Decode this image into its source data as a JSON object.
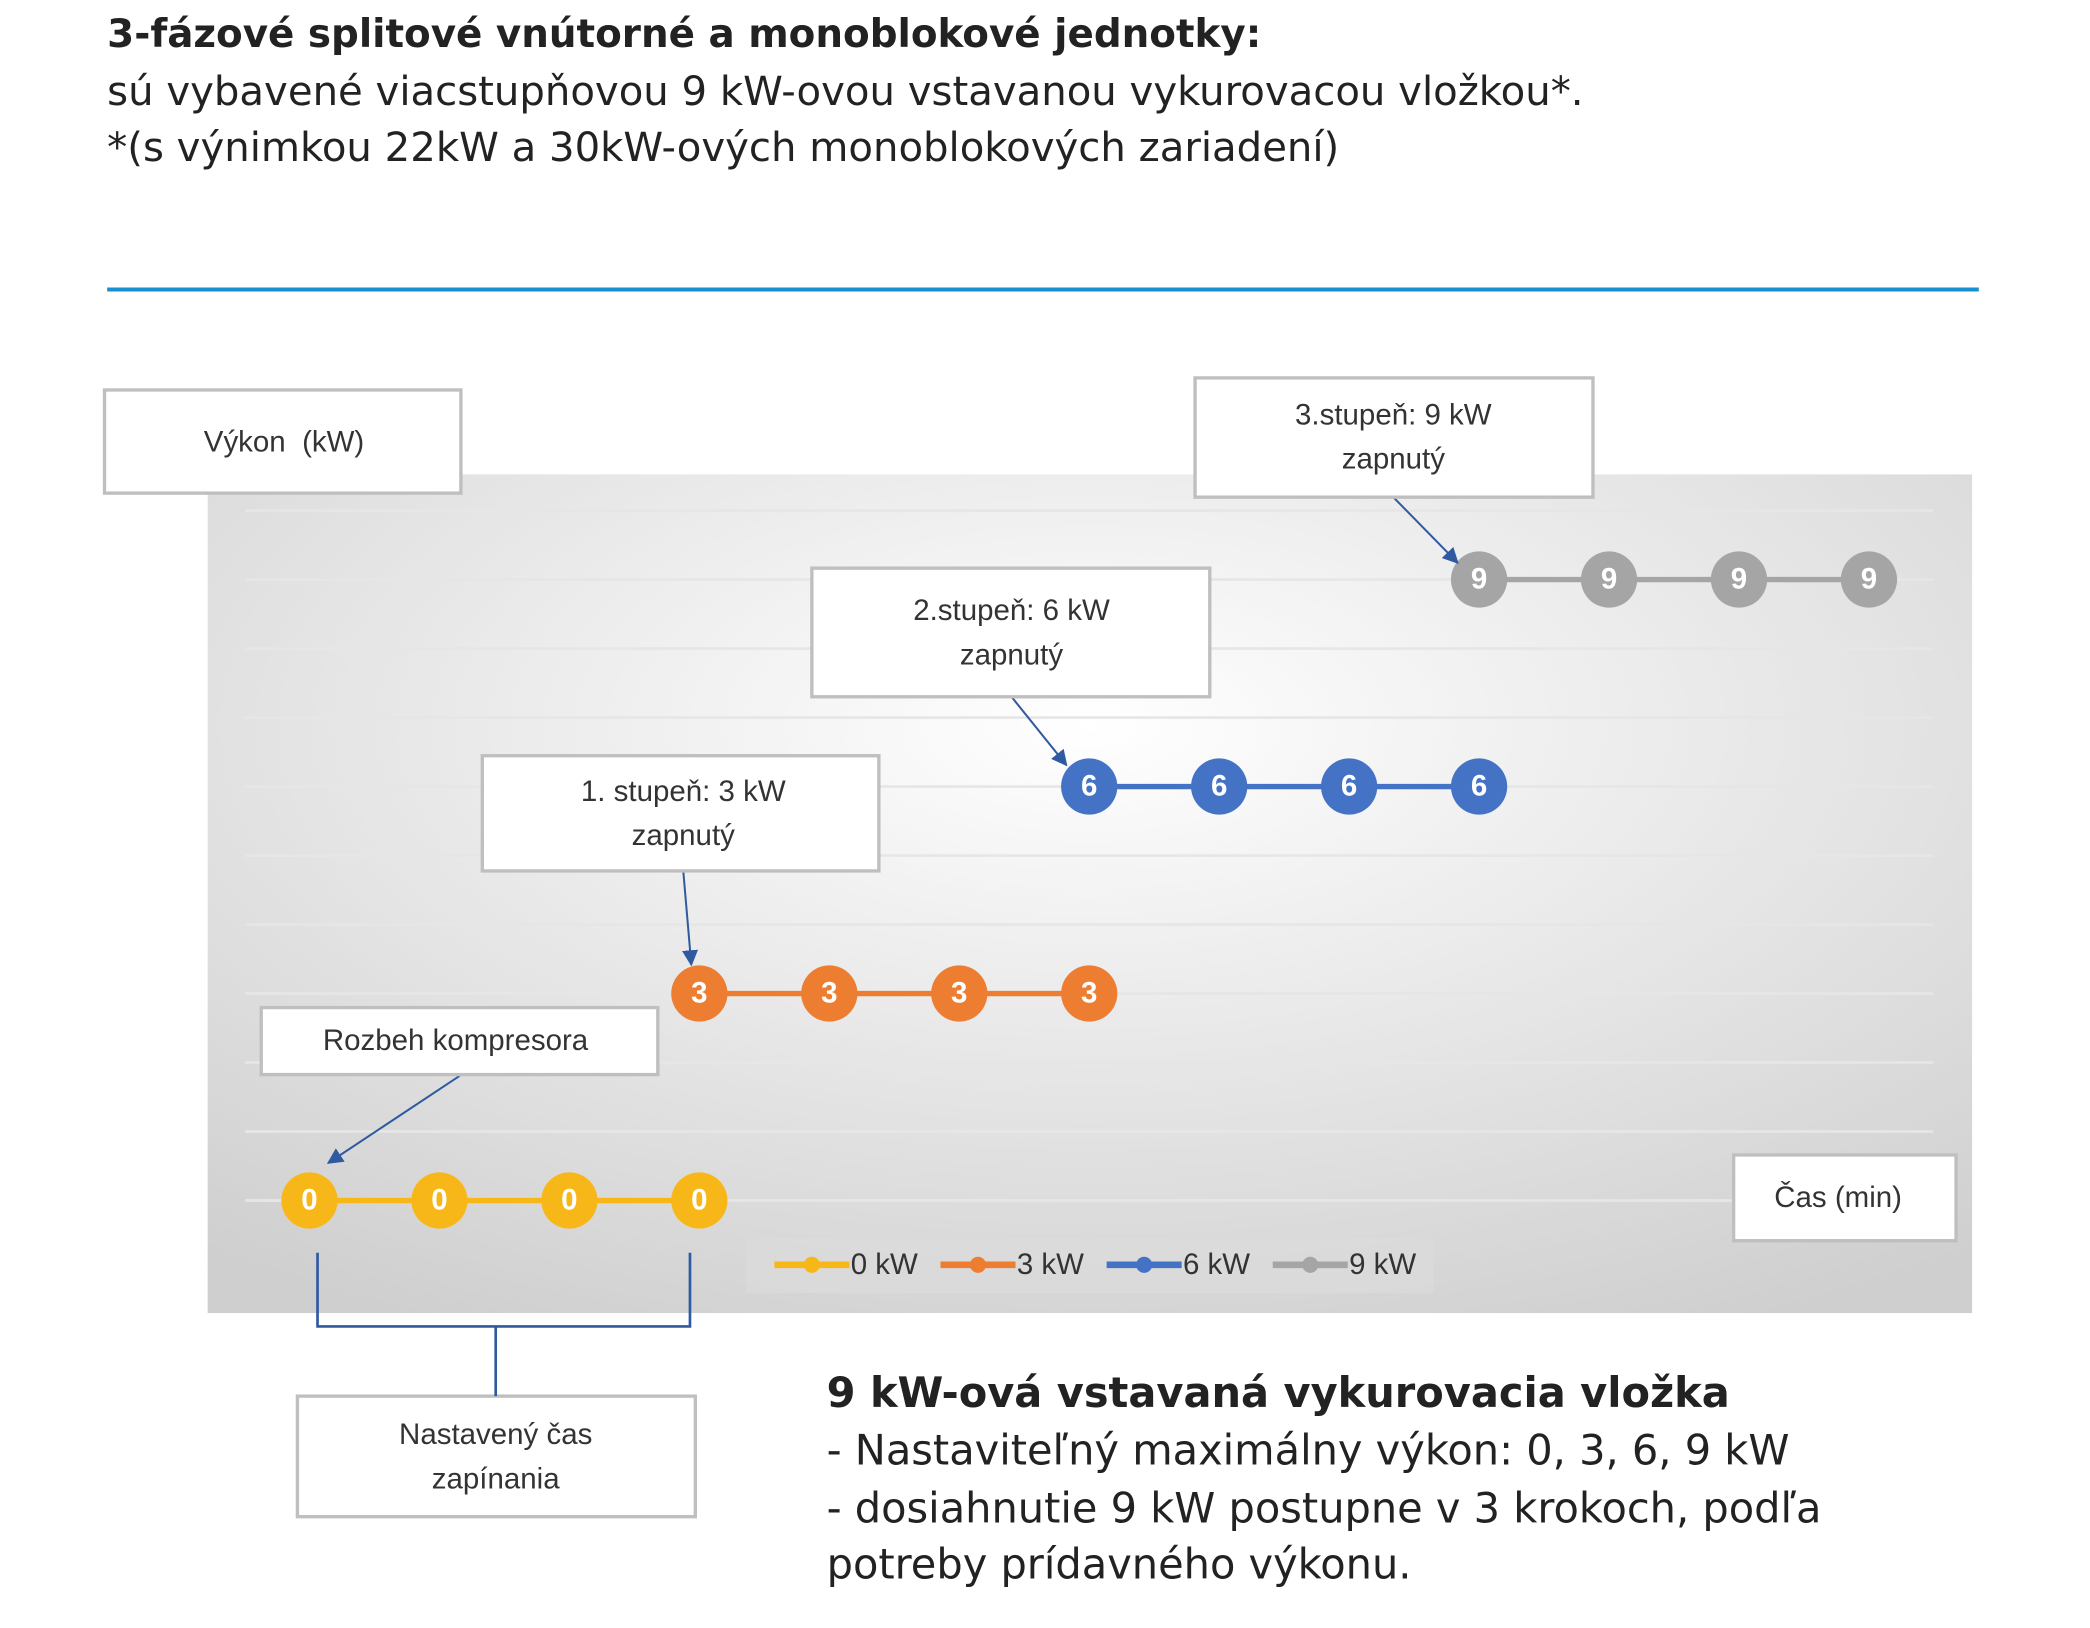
{
  "header": {
    "title": "3-fázové splitové vnútorné a monoblokové jednotky:",
    "lines": [
      "sú vybavené viacstupňovou 9 kW-ovou vstavanou vykurovacou vložkou*.",
      "*(s výnimkou 22kW a 30kW-ových monoblokových zariadení)"
    ]
  },
  "chart_data": {
    "type": "line",
    "y_label": "Výkon  (kW)",
    "x_label": "Čas (min)",
    "categories": [
      null,
      null,
      null,
      null,
      null,
      null,
      null,
      null,
      null,
      null,
      null,
      null,
      null
    ],
    "series": [
      {
        "name": "0 kW",
        "color": "#f7b718",
        "values": [
          0,
          0,
          0,
          0,
          null,
          null,
          null,
          null,
          null,
          null,
          null,
          null,
          null
        ]
      },
      {
        "name": "3 kW",
        "color": "#ed7d31",
        "values": [
          null,
          null,
          null,
          3,
          3,
          3,
          3,
          null,
          null,
          null,
          null,
          null,
          null
        ]
      },
      {
        "name": "6 kW",
        "color": "#4472c4",
        "values": [
          null,
          null,
          null,
          null,
          null,
          null,
          6,
          6,
          6,
          6,
          null,
          null,
          null
        ]
      },
      {
        "name": "9 kW",
        "color": "#a5a5a5",
        "values": [
          null,
          null,
          null,
          null,
          null,
          null,
          null,
          null,
          null,
          9,
          9,
          9,
          9
        ]
      }
    ],
    "ylim": [
      0,
      10
    ],
    "yticks": [
      0,
      1,
      2,
      3,
      4,
      5,
      6,
      7,
      8,
      9,
      10
    ],
    "grid": true,
    "annotations": [
      {
        "text": [
          "3.stupeň: 9 kW",
          "zapnutý"
        ]
      },
      {
        "text": [
          "2.stupeň: 6 kW",
          "zapnutý"
        ]
      },
      {
        "text": [
          "1. stupeň: 3 kW",
          "zapnutý"
        ]
      },
      {
        "text": [
          "Rozbeh kompresora"
        ]
      },
      {
        "text": [
          "Nastavený čas",
          "zapínania"
        ]
      }
    ]
  },
  "footer": {
    "title": "9 kW-ová vstavaná vykurovacia vložka",
    "lines": [
      "- Nastaviteľný maximálny výkon: 0, 3, 6, 9 kW",
      "- dosiahnutie 9 kW postupne v 3 krokoch, podľa",
      "potreby prídavného výkonu."
    ]
  }
}
